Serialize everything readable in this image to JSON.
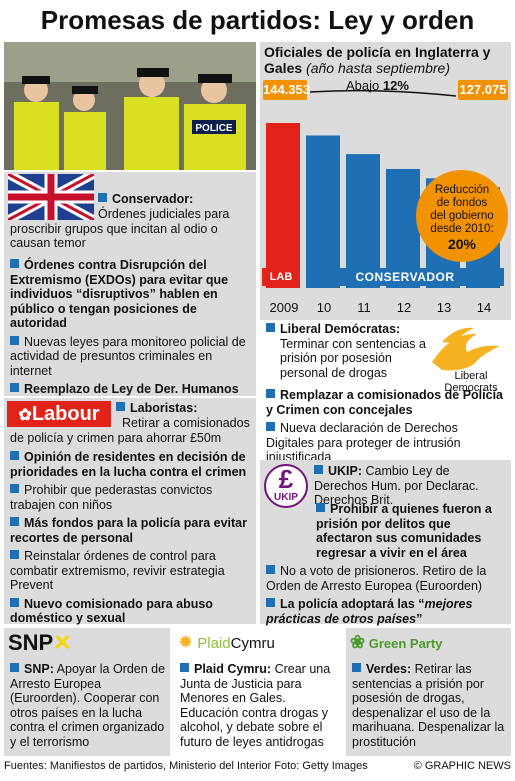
{
  "title": "Promesas de partidos: Ley y orden",
  "chart_data": {
    "type": "bar",
    "title": "Oficiales de policía en Inglaterra y Gales",
    "subtitle": "(año hasta septiembre)",
    "categories": [
      "2009",
      "10",
      "11",
      "12",
      "13",
      "14"
    ],
    "values": [
      144353,
      141000,
      136000,
      132000,
      129500,
      127075
    ],
    "value_labels": [
      "144.353",
      "127.075"
    ],
    "change_label": "Abajo",
    "change_value": "12%",
    "bar_colors": [
      "#e2231a",
      "#1f6fb5",
      "#1f6fb5",
      "#1f6fb5",
      "#1f6fb5",
      "#1f6fb5"
    ],
    "ylim": [
      100000,
      150000
    ],
    "periods": [
      {
        "label": "LAB",
        "color": "#e2231a"
      },
      {
        "label": "CONSERVADOR",
        "color": "#1f6fb5"
      }
    ],
    "annotation": {
      "lines": [
        "Reducción",
        "de fondos",
        "del gobierno",
        "desde 2010:"
      ],
      "value": "20%"
    }
  },
  "conservative": {
    "intro_bold": "Conservador:",
    "intro_rest": "Órdenes judiciales para proscribir grupos que incitan al odio o causan temor",
    "items": [
      {
        "bold": "Órdenes contra Disrupción del Extremismo (EXDOs) para evitar que individuos “disruptivos” hablen en público o tengan posiciones de autoridad",
        "rest": ""
      },
      {
        "bold": "",
        "rest": "Nuevas leyes para monitoreo policial de actividad de presuntos criminales en internet"
      },
      {
        "bold": "Reemplazo de Ley de Der. Humanos por Declaración de Derechos Británica",
        "rest": ""
      }
    ]
  },
  "libdem": {
    "logo_line1": "Liberal",
    "logo_line2": "Democrats",
    "intro_bold": "Liberal Demócratas:",
    "intro_rest": "Terminar con sentencias a prisión por posesión personal de drogas",
    "items": [
      {
        "bold": "Remplazar a comisionados de Policía y Crimen con concejales",
        "rest": ""
      },
      {
        "bold": "",
        "rest": "Nueva declaración de Derechos Digitales para proteger de intrusión injustificada"
      }
    ]
  },
  "labour": {
    "logo": "Labour",
    "intro_bold": "Laboristas:",
    "intro_rest": "Retirar a comisionados de policía y crimen para ahorrar £50m",
    "items": [
      {
        "bold": "Opinión de residentes en decisión de prioridades en la lucha contra el crimen",
        "rest": ""
      },
      {
        "bold": "",
        "rest": "Prohibir que pederastas convictos trabajen con niños"
      },
      {
        "bold": "Más fondos para la policía para evitar recortes de personal",
        "rest": ""
      },
      {
        "bold": "",
        "rest": "Reinstalar órdenes de control para combatir extremismo, revivir estrategia Prevent"
      },
      {
        "bold": "Nuevo comisionado para abuso doméstico y sexual",
        "rest": ""
      }
    ]
  },
  "ukip": {
    "logo": "UKIP",
    "intro_bold": "UKIP:",
    "intro_rest": "Cambio Ley de Derechos Hum. por Declarac. Derechos Brit.",
    "items": [
      {
        "bold": "Prohibir a quienes fueron a prisión por delitos que afectaron sus comunidades regresar a vivir en el área",
        "rest": ""
      },
      {
        "bold": "",
        "rest": "No a voto de prisioneros. Retiro de la Orden de Arresto Europea (Euroorden)"
      },
      {
        "bold": "La policía adoptará las “",
        "italic": "mejores prácticas de otros países",
        "tail": "”"
      }
    ]
  },
  "snp": {
    "logo": "SNP",
    "intro_bold": "SNP:",
    "intro_rest": "Apoyar la Orden de Arresto Europea (Euroorden). Cooperar con otros países en la lucha contra el crimen organizado y el terrorismo"
  },
  "plaid": {
    "logo_a": "Plaid",
    "logo_b": "Cymru",
    "intro_bold": "Plaid Cymru:",
    "intro_rest": "Crear una Junta de Justicia para Menores en Gales. Educación contra drogas y alcohol, y debate sobre el futuro de leyes antidrogas"
  },
  "green": {
    "logo": "Green Party",
    "intro_bold": "Verdes:",
    "intro_rest": "Retirar las sentencias a prisión por posesión de drogas, despenalizar el uso de la marihuana. Despenalizar la prostitución"
  },
  "photo": {
    "badge": "POLICE"
  },
  "watermark": "GRAPHIC NEWS",
  "footer": {
    "sources": "Fuentes: Manifiestos de partidos, Ministerio del Interior",
    "photo_credit": "Foto: Getty Images",
    "copyright": "© GRAPHIC NEWS"
  }
}
